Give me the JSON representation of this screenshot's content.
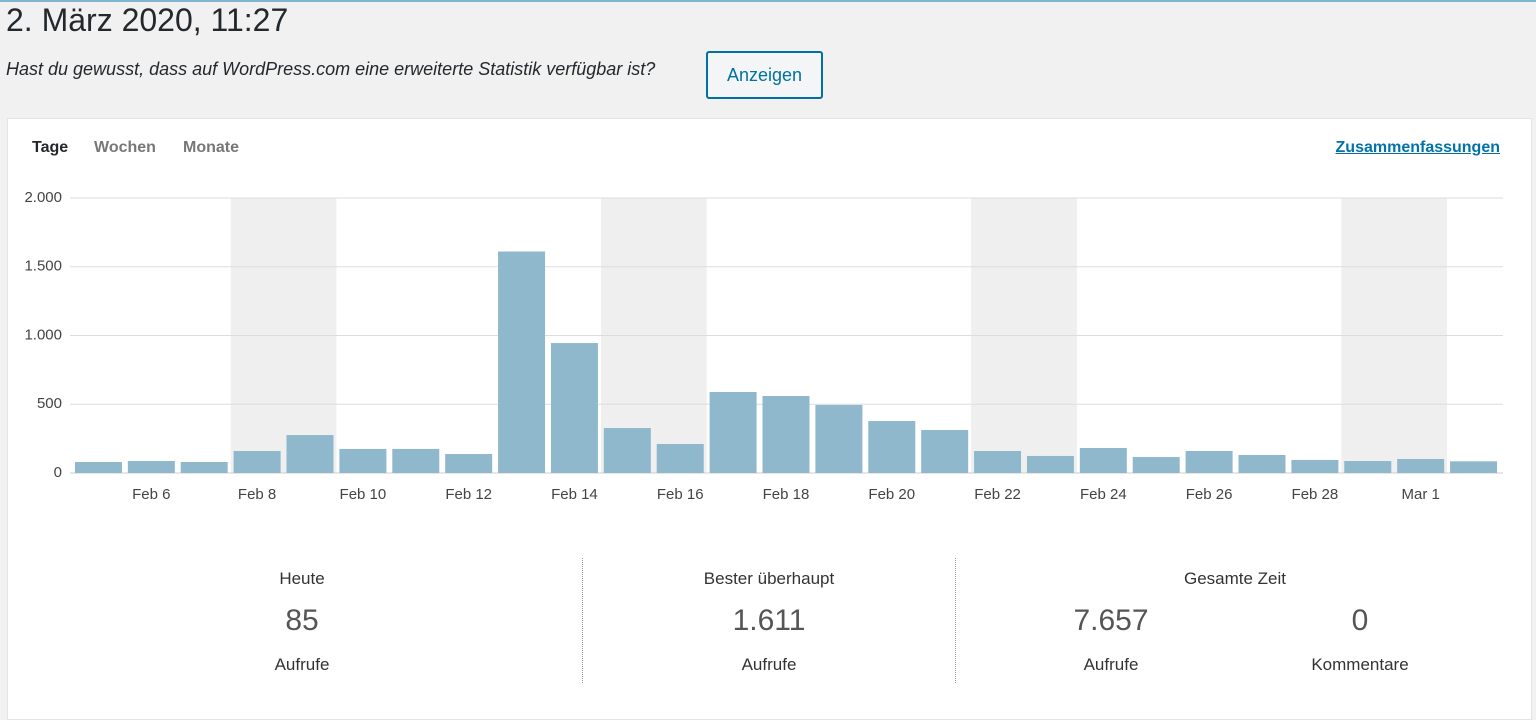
{
  "header": {
    "title": "2. März 2020, 11:27",
    "notice": "Hast du gewusst, dass auf WordPress.com eine erweiterte Statistik verfügbar ist?",
    "button": "Anzeigen"
  },
  "tabs": [
    "Tage",
    "Wochen",
    "Monate"
  ],
  "link": "Zusammenfassungen",
  "chart_data": {
    "type": "bar",
    "color": "#8fb8cc",
    "shade_color": "#efefef",
    "grid": true,
    "categories": [
      null,
      "Feb 6",
      null,
      "Feb 8",
      null,
      "Feb 10",
      null,
      "Feb 12",
      null,
      "Feb 14",
      null,
      "Feb 16",
      null,
      "Feb 18",
      null,
      "Feb 20",
      null,
      "Feb 22",
      null,
      "Feb 24",
      null,
      "Feb 26",
      null,
      "Feb 28",
      null,
      "Mar 1",
      null
    ],
    "values": [
      80,
      87,
      80,
      160,
      276,
      175,
      175,
      138,
      1611,
      945,
      327,
      211,
      589,
      560,
      495,
      378,
      313,
      160,
      124,
      182,
      116,
      160,
      131,
      95,
      87,
      102,
      85
    ],
    "shaded_categories": [
      3,
      4,
      10,
      11,
      17,
      18,
      24,
      25
    ],
    "ylim": [
      0,
      2000
    ],
    "yticks": [
      0,
      500,
      {
        "value": 1000,
        "label": "1.000"
      },
      {
        "value": 1500,
        "label": "1.500"
      },
      {
        "value": 2000,
        "label": "2.000"
      }
    ]
  },
  "stats": [
    {
      "title": "Heute",
      "items": [
        {
          "value": "85",
          "label": "Aufrufe"
        }
      ]
    },
    {
      "title": "Bester überhaupt",
      "items": [
        {
          "value": "1.611",
          "label": "Aufrufe"
        }
      ]
    },
    {
      "title": "Gesamte Zeit",
      "items": [
        {
          "value": "7.657",
          "label": "Aufrufe"
        },
        {
          "value": "0",
          "label": "Kommentare"
        }
      ]
    }
  ]
}
